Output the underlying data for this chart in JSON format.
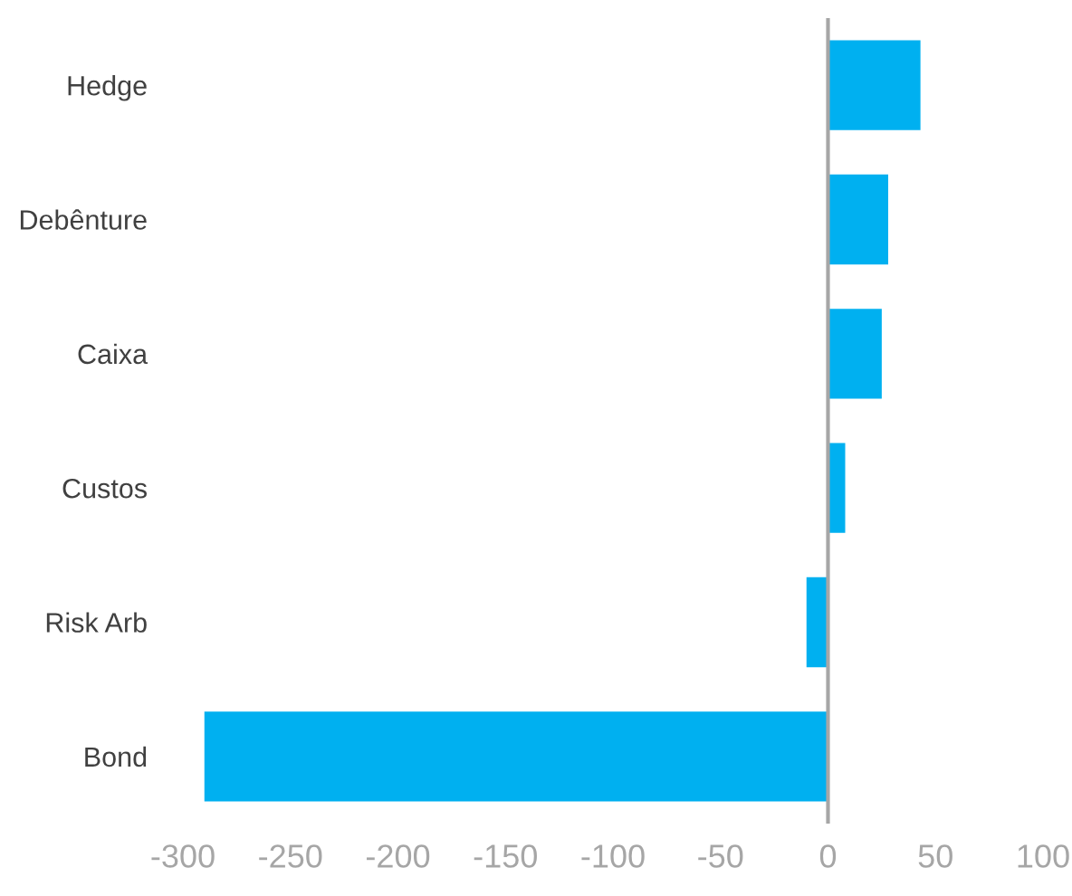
{
  "chart_data": {
    "type": "bar",
    "orientation": "horizontal",
    "categories": [
      "Hedge",
      "Debênture",
      "Caixa",
      "Custos",
      "Risk Arb",
      "Bond"
    ],
    "values": [
      43,
      28,
      25,
      8,
      -10,
      -290
    ],
    "color": "#00b0f0",
    "xlim": [
      -300,
      100
    ],
    "xticks": [
      -300,
      -250,
      -200,
      -150,
      -100,
      -50,
      0,
      50,
      100
    ],
    "ref_lines": [
      {
        "axis": "x",
        "value": 0,
        "color": "#a6a6a6"
      }
    ],
    "grid": false,
    "legend": false
  }
}
